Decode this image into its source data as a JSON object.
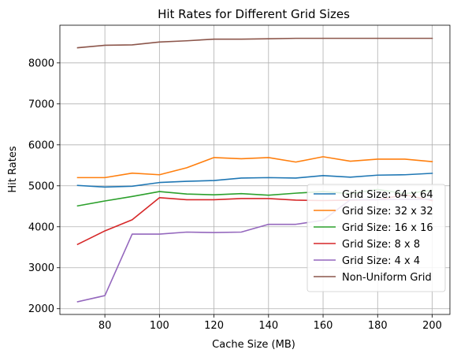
{
  "chart_data": {
    "type": "line",
    "title": "Hit Rates for Different Grid Sizes",
    "xlabel": "Cache Size (MB)",
    "ylabel": "Hit Rates",
    "xlim": [
      63.5,
      206.5
    ],
    "ylim": [
      1860,
      8920
    ],
    "xticks": [
      80,
      100,
      120,
      140,
      160,
      180,
      200
    ],
    "yticks": [
      2000,
      3000,
      4000,
      5000,
      6000,
      7000,
      8000
    ],
    "grid": true,
    "legend_position": "lower-right",
    "x": [
      70,
      80,
      90,
      100,
      110,
      120,
      130,
      140,
      150,
      160,
      170,
      180,
      190,
      200
    ],
    "series": [
      {
        "name": "Grid Size: 64 x 64",
        "color": "#1f77b4",
        "values": [
          5010,
          4970,
          4990,
          5080,
          5110,
          5130,
          5190,
          5200,
          5190,
          5250,
          5210,
          5260,
          5270,
          5305
        ]
      },
      {
        "name": "Grid Size: 32 x 32",
        "color": "#ff7f0e",
        "values": [
          5200,
          5200,
          5310,
          5270,
          5440,
          5690,
          5660,
          5690,
          5580,
          5710,
          5600,
          5650,
          5650,
          5590
        ]
      },
      {
        "name": "Grid Size: 16 x 16",
        "color": "#2ca02c",
        "values": [
          4510,
          4630,
          4740,
          4860,
          4800,
          4780,
          4810,
          4770,
          4820,
          4860,
          4810,
          4910,
          4810,
          4890
        ]
      },
      {
        "name": "Grid Size: 8 x 8",
        "color": "#d62728",
        "values": [
          3570,
          3900,
          4170,
          4710,
          4660,
          4660,
          4690,
          4690,
          4650,
          4640,
          4650,
          4660,
          4780,
          4640
        ]
      },
      {
        "name": "Grid Size: 4 x 4",
        "color": "#9467bd",
        "values": [
          2170,
          2320,
          3820,
          3820,
          3870,
          3860,
          3870,
          4060,
          4060,
          4160,
          4660,
          4660,
          4670,
          4670
        ]
      },
      {
        "name": "Non-Uniform Grid",
        "color": "#8c564b",
        "values": [
          8370,
          8430,
          8440,
          8510,
          8540,
          8580,
          8580,
          8590,
          8600,
          8600,
          8600,
          8600,
          8600,
          8600
        ]
      }
    ]
  }
}
